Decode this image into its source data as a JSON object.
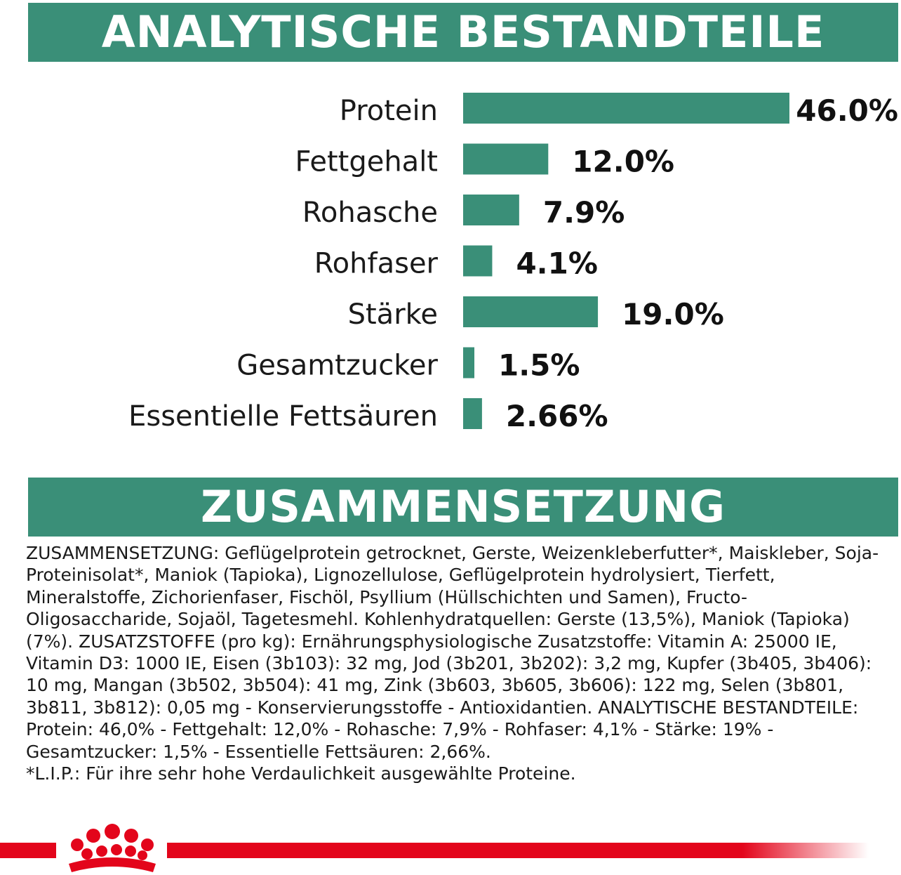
{
  "headers": {
    "analytics": "ANALYTISCHE BESTANDTEILE",
    "composition": "ZUSAMMENSETZUNG"
  },
  "chart_data": {
    "type": "bar",
    "orientation": "horizontal",
    "categories": [
      "Protein",
      "Fettgehalt",
      "Rohasche",
      "Rohfaser",
      "Stärke",
      "Gesamtzucker",
      "Essentielle Fettsäuren"
    ],
    "values": [
      46.0,
      12.0,
      7.9,
      4.1,
      19.0,
      1.5,
      2.66
    ],
    "value_labels": [
      "46.0%",
      "12.0%",
      "7.9%",
      "4.1%",
      "19.0%",
      "1.5%",
      "2.66%"
    ],
    "bar_color": "#3a8f78"
  },
  "composition_text": "ZUSAMMENSETZUNG: Geflügelprotein getrocknet, Gerste, Weizenkleberfutter*, Maiskleber, Soja-Proteinisolat*, Maniok (Tapioka), Lignozellulose, Geflügelprotein hydrolysiert, Tierfett, Mineralstoffe, Zichorienfaser, Fischöl, Psyllium (Hüllschichten und Samen), Fructo-Oligosaccharide, Sojaöl, Tagetesmehl. Kohlenhydratquellen: Gerste (13,5%), Maniok (Tapioka) (7%). ZUSATZSTOFFE (pro kg): Ernährungsphysiologische Zusatzstoffe: Vitamin A: 25000 IE, Vitamin D3: 1000 IE, Eisen (3b103): 32 mg, Jod (3b201, 3b202): 3,2 mg, Kupfer (3b405, 3b406): 10 mg, Mangan (3b502, 3b504): 41 mg, Zink (3b603, 3b605, 3b606): 122 mg, Selen (3b801, 3b811, 3b812): 0,05 mg - Konservierungsstoffe - Antioxidantien. ANALYTISCHE BESTANDTEILE: Protein: 46,0% - Fettgehalt: 12,0% - Rohasche: 7,9% - Rohfaser: 4,1% - Stärke: 19% - Gesamtzucker: 1,5% - Essentielle Fettsäuren: 2,66%.",
  "footnote": "*L.I.P.: Für ihre sehr hohe Verdaulichkeit ausgewählte Proteine.",
  "colors": {
    "green": "#3a8f78",
    "red": "#e3051b"
  },
  "logo": "royal-canin-crown-logo"
}
